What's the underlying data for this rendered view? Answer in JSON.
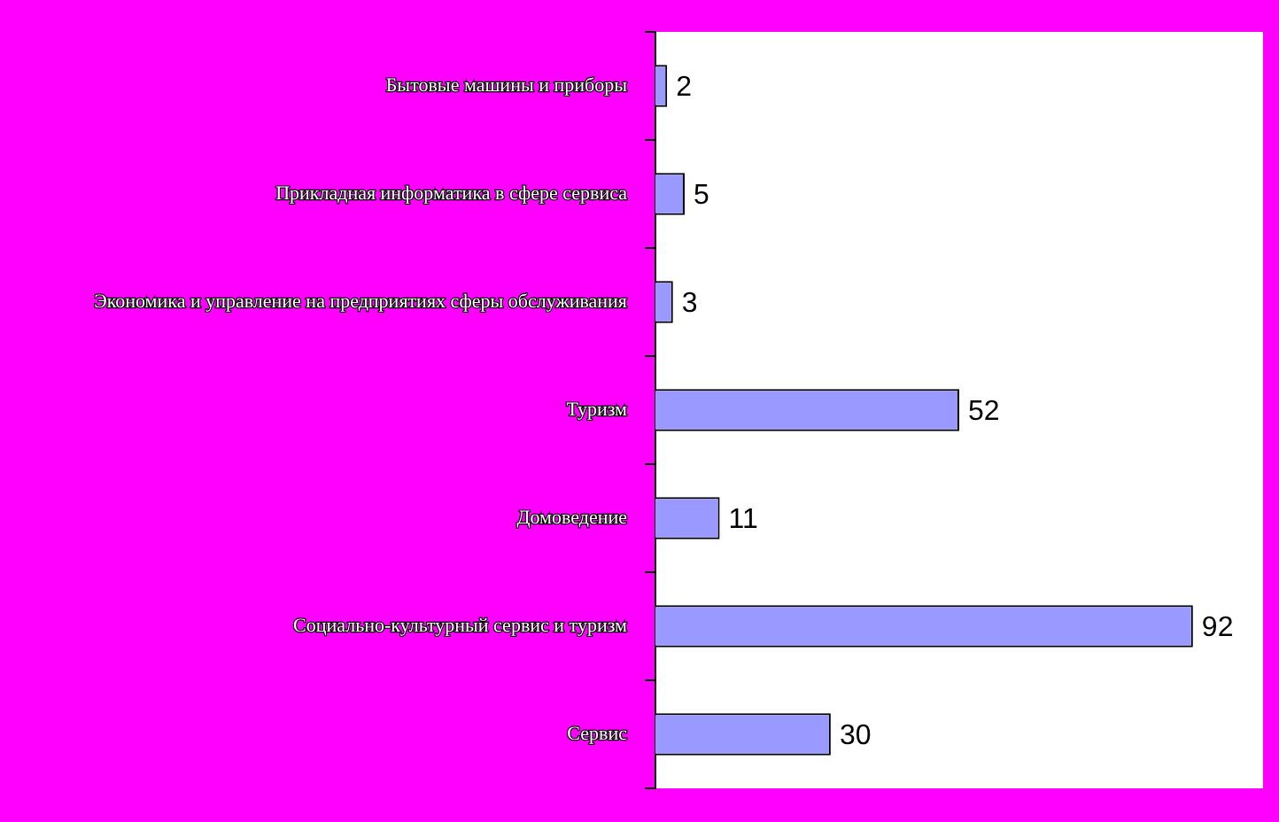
{
  "chart_data": {
    "type": "bar",
    "orientation": "horizontal",
    "categories": [
      "Бытовые машины и приборы",
      "Прикладная информатика в сфере сервиса",
      "Экономика и управление на предприятиях сферы обслуживания",
      "Туризм",
      "Домоведение",
      "Социально-культурный сервис и туризм",
      "Сервис"
    ],
    "values": [
      2,
      5,
      3,
      52,
      11,
      92,
      30
    ],
    "color": "#9999ff",
    "xlim": [
      0,
      104
    ],
    "tick_labels": "y",
    "data_labels": true
  }
}
